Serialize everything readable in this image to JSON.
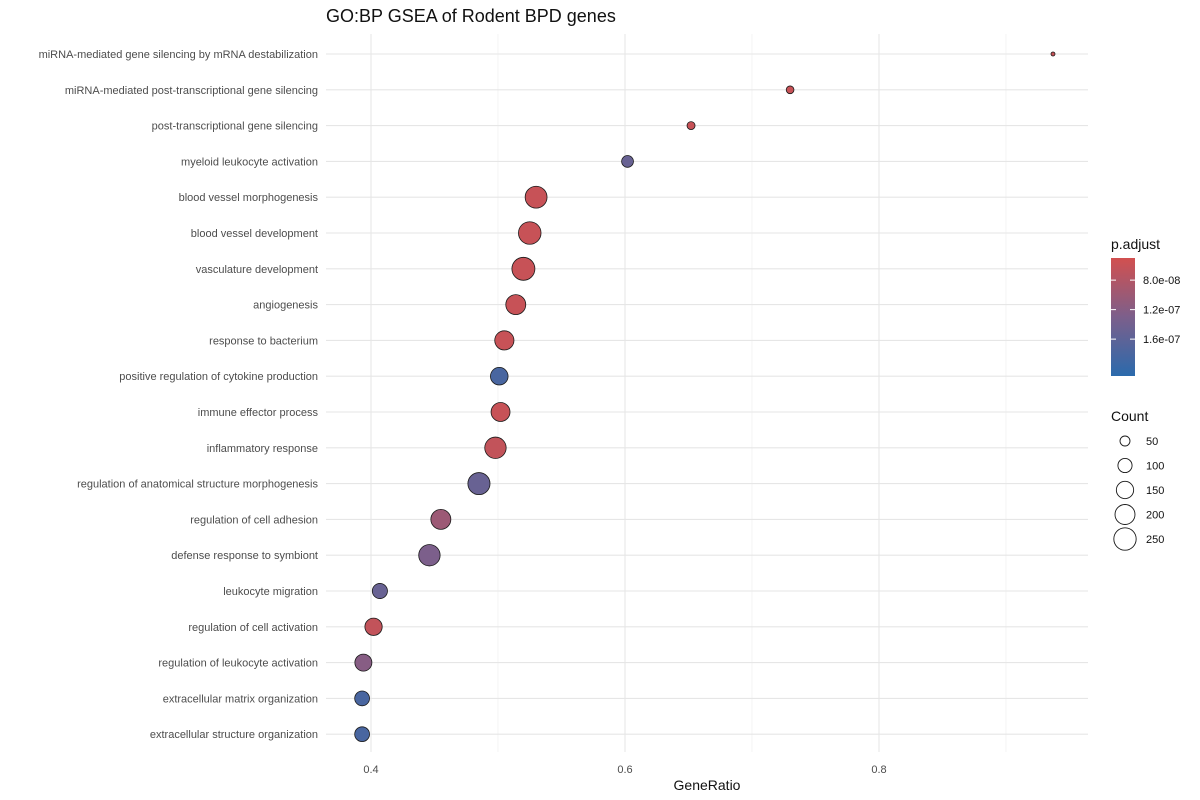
{
  "chart_data": {
    "type": "scatter",
    "title": "GO:BP GSEA of Rodent BPD genes",
    "xlabel": "GeneRatio",
    "ylabel": "",
    "xlim": [
      0.32,
      0.96
    ],
    "xticks": [
      0.4,
      0.6,
      0.8
    ],
    "xtick_labels": [
      "0.4",
      "0.6",
      "0.8"
    ],
    "grid": true,
    "points": [
      {
        "term": "miRNA-mediated gene silencing by mRNA destabilization",
        "x": 0.937,
        "count": 8,
        "p_adjust": 6e-08
      },
      {
        "term": "miRNA-mediated post-transcriptional gene silencing",
        "x": 0.73,
        "count": 30,
        "p_adjust": 6e-08
      },
      {
        "term": "post-transcriptional gene silencing",
        "x": 0.652,
        "count": 32,
        "p_adjust": 6e-08
      },
      {
        "term": "myeloid leukocyte activation",
        "x": 0.602,
        "count": 70,
        "p_adjust": 1.5e-07
      },
      {
        "term": "blood vessel morphogenesis",
        "x": 0.53,
        "count": 240,
        "p_adjust": 6e-08
      },
      {
        "term": "blood vessel development",
        "x": 0.525,
        "count": 255,
        "p_adjust": 6e-08
      },
      {
        "term": "vasculature development",
        "x": 0.52,
        "count": 265,
        "p_adjust": 6e-08
      },
      {
        "term": "angiogenesis",
        "x": 0.514,
        "count": 200,
        "p_adjust": 6e-08
      },
      {
        "term": "response to bacterium",
        "x": 0.505,
        "count": 185,
        "p_adjust": 6e-08
      },
      {
        "term": "positive regulation of cytokine production",
        "x": 0.501,
        "count": 155,
        "p_adjust": 1.8e-07
      },
      {
        "term": "immune effector process",
        "x": 0.502,
        "count": 180,
        "p_adjust": 6e-08
      },
      {
        "term": "inflammatory response",
        "x": 0.498,
        "count": 230,
        "p_adjust": 6.5e-08
      },
      {
        "term": "regulation of anatomical structure morphogenesis",
        "x": 0.485,
        "count": 245,
        "p_adjust": 1.5e-07
      },
      {
        "term": "regulation of cell adhesion",
        "x": 0.455,
        "count": 200,
        "p_adjust": 1e-07
      },
      {
        "term": "defense response to symbiont",
        "x": 0.446,
        "count": 230,
        "p_adjust": 1.3e-07
      },
      {
        "term": "leukocyte migration",
        "x": 0.407,
        "count": 115,
        "p_adjust": 1.5e-07
      },
      {
        "term": "regulation of cell activation",
        "x": 0.402,
        "count": 150,
        "p_adjust": 6.5e-08
      },
      {
        "term": "regulation of leukocyte activation",
        "x": 0.394,
        "count": 145,
        "p_adjust": 1.2e-07
      },
      {
        "term": "extracellular matrix organization",
        "x": 0.393,
        "count": 110,
        "p_adjust": 1.8e-07
      },
      {
        "term": "extracellular structure organization",
        "x": 0.393,
        "count": 110,
        "p_adjust": 1.8e-07
      }
    ],
    "color_legend": {
      "title": "p.adjust",
      "low_color": "#d2504f",
      "mid_color": "#7c5f8b",
      "high_color": "#2b6aac",
      "range": [
        5e-08,
        2.1e-07
      ],
      "ticks": [
        8e-08,
        1.2e-07,
        1.6e-07
      ],
      "tick_labels": [
        "8.0e-08",
        "1.2e-07",
        "1.6e-07"
      ]
    },
    "size_legend": {
      "title": "Count",
      "values": [
        50,
        100,
        150,
        200,
        250
      ],
      "labels": [
        "50",
        "100",
        "150",
        "200",
        "250"
      ]
    }
  }
}
